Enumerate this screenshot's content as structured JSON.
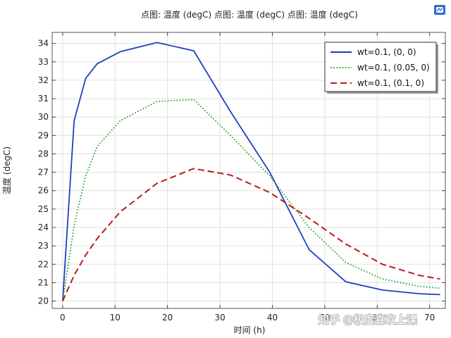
{
  "chart_data": {
    "type": "line",
    "title": "点图: 温度 (degC)  点图: 温度 (degC)  点图: 温度 (degC)",
    "xlabel": "时间 (h)",
    "ylabel": "温度 (degC)",
    "xlim": [
      -2,
      73
    ],
    "ylim": [
      19.6,
      34.6
    ],
    "xticks": [
      0,
      10,
      20,
      30,
      40,
      50,
      60,
      70
    ],
    "yticks": [
      20,
      21,
      22,
      23,
      24,
      25,
      26,
      27,
      28,
      29,
      30,
      31,
      32,
      33,
      34
    ],
    "grid": true,
    "legend_position": "top-right",
    "series": [
      {
        "name": "wt=0.1, (0, 0)",
        "color": "#1f3fbf",
        "dash": "solid",
        "x": [
          0,
          2.2,
          4.4,
          6.6,
          11,
          18,
          25,
          32,
          39.5,
          47,
          54,
          61,
          68,
          72
        ],
        "y": [
          20.0,
          29.8,
          32.1,
          32.9,
          33.55,
          34.05,
          33.6,
          30.3,
          27.0,
          22.8,
          21.05,
          20.6,
          20.4,
          20.35
        ]
      },
      {
        "name": "wt=0.1, (0.05, 0)",
        "color": "#22a022",
        "dash": "dotted",
        "x": [
          0,
          2.2,
          4.4,
          6.6,
          11,
          18,
          25,
          32,
          39.5,
          47,
          54,
          61,
          68,
          72
        ],
        "y": [
          20.0,
          24.1,
          26.8,
          28.4,
          29.8,
          30.85,
          30.95,
          29.0,
          26.8,
          24.0,
          22.1,
          21.2,
          20.8,
          20.7
        ]
      },
      {
        "name": "wt=0.1, (0.1, 0)",
        "color": "#b81c1c",
        "dash": "dashed",
        "x": [
          0,
          2.2,
          4.4,
          6.6,
          11,
          18,
          25,
          32,
          39.5,
          47,
          54,
          61,
          68,
          72
        ],
        "y": [
          20.0,
          21.4,
          22.5,
          23.4,
          24.85,
          26.4,
          27.2,
          26.85,
          25.9,
          24.5,
          23.1,
          22.0,
          21.4,
          21.2
        ]
      }
    ]
  },
  "watermark": "知乎 @极度喜欢上课",
  "corner_icon": "comsol-logo-icon"
}
